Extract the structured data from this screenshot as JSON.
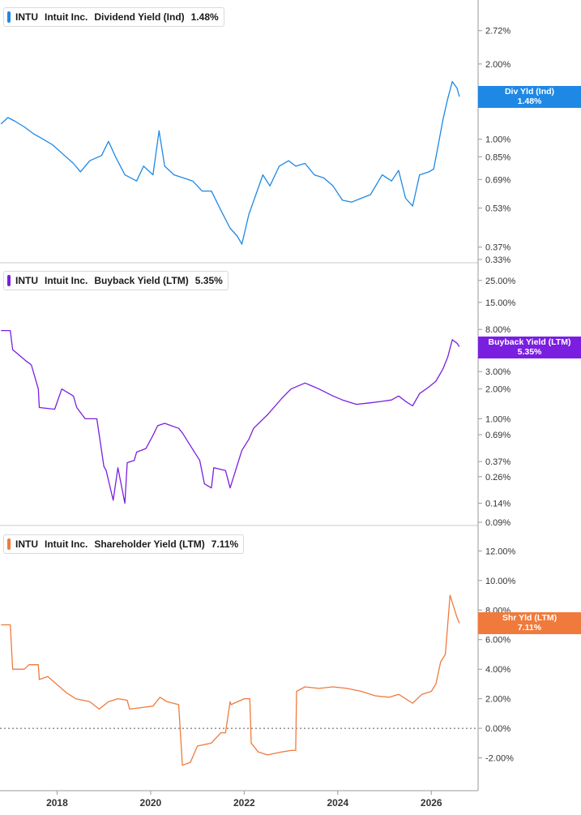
{
  "chart_data": [
    {
      "type": "line",
      "scale": "log",
      "ticker": "INTU",
      "company": "Intuit Inc.",
      "metric": "Dividend Yield (Ind)",
      "current_value": "1.48%",
      "tag_label": "Div Yld (Ind)",
      "color": "#1e88e5",
      "yticks": [
        "2.72%",
        "2.00%",
        "1.00%",
        "0.85%",
        "0.69%",
        "0.53%",
        "0.37%",
        "0.33%"
      ],
      "ytick_values": [
        2.72,
        2.0,
        1.0,
        0.85,
        0.69,
        0.53,
        0.37,
        0.33
      ],
      "ylim": [
        0.33,
        3.5
      ],
      "series": [
        {
          "x": [
            2016.8,
            2016.95,
            2017.1,
            2017.3,
            2017.5,
            2017.7,
            2017.9,
            2018.1,
            2018.35,
            2018.5,
            2018.7,
            2018.95,
            2019.1,
            2019.25,
            2019.45,
            2019.7,
            2019.85,
            2020.05,
            2020.18,
            2020.3,
            2020.5,
            2020.7,
            2020.9,
            2021.1,
            2021.3,
            2021.5,
            2021.7,
            2021.85,
            2021.95,
            2022.1,
            2022.25,
            2022.4,
            2022.55,
            2022.75,
            2022.95,
            2023.1,
            2023.3,
            2023.5,
            2023.7,
            2023.9,
            2024.1,
            2024.3,
            2024.5,
            2024.7,
            2024.95,
            2025.15,
            2025.3,
            2025.45,
            2025.6,
            2025.75,
            2025.95,
            2026.05,
            2026.15,
            2026.25,
            2026.35,
            2026.45,
            2026.55,
            2026.6
          ],
          "y": [
            1.15,
            1.22,
            1.18,
            1.12,
            1.05,
            1.0,
            0.95,
            0.88,
            0.8,
            0.74,
            0.82,
            0.86,
            0.98,
            0.85,
            0.72,
            0.68,
            0.78,
            0.72,
            1.08,
            0.78,
            0.72,
            0.7,
            0.68,
            0.62,
            0.62,
            0.52,
            0.44,
            0.41,
            0.38,
            0.5,
            0.6,
            0.72,
            0.65,
            0.78,
            0.82,
            0.78,
            0.8,
            0.72,
            0.7,
            0.65,
            0.57,
            0.56,
            0.58,
            0.6,
            0.72,
            0.68,
            0.75,
            0.58,
            0.54,
            0.72,
            0.74,
            0.76,
            0.95,
            1.2,
            1.45,
            1.7,
            1.6,
            1.48
          ]
        }
      ]
    },
    {
      "type": "line",
      "scale": "log",
      "ticker": "INTU",
      "company": "Intuit Inc.",
      "metric": "Buyback Yield (LTM)",
      "current_value": "5.35%",
      "tag_label": "Buyback Yield (LTM)",
      "color": "#7a1fe0",
      "yticks": [
        "25.00%",
        "15.00%",
        "8.00%",
        "3.00%",
        "2.00%",
        "1.00%",
        "0.69%",
        "0.37%",
        "0.26%",
        "0.14%",
        "0.09%"
      ],
      "ytick_values": [
        25,
        15,
        8,
        3,
        2,
        1,
        0.69,
        0.37,
        0.26,
        0.14,
        0.09
      ],
      "ylim": [
        0.09,
        35
      ],
      "series": [
        {
          "x": [
            2016.8,
            2017.0,
            2017.05,
            2017.35,
            2017.45,
            2017.6,
            2017.62,
            2017.95,
            2018.1,
            2018.35,
            2018.42,
            2018.6,
            2018.85,
            2019.0,
            2019.05,
            2019.2,
            2019.3,
            2019.45,
            2019.5,
            2019.65,
            2019.7,
            2019.9,
            2020.05,
            2020.15,
            2020.3,
            2020.6,
            2020.68,
            2020.95,
            2021.05,
            2021.15,
            2021.3,
            2021.35,
            2021.6,
            2021.7,
            2021.95,
            2022.1,
            2022.2,
            2022.5,
            2022.8,
            2023.0,
            2023.3,
            2023.6,
            2023.9,
            2024.1,
            2024.4,
            2024.7,
            2024.95,
            2025.15,
            2025.3,
            2025.45,
            2025.6,
            2025.75,
            2025.95,
            2026.1,
            2026.25,
            2026.35,
            2026.45,
            2026.55,
            2026.6
          ],
          "y": [
            7.8,
            7.8,
            5.0,
            3.8,
            3.5,
            2.0,
            1.3,
            1.25,
            2.0,
            1.7,
            1.3,
            1.0,
            1.0,
            0.33,
            0.3,
            0.15,
            0.32,
            0.14,
            0.36,
            0.38,
            0.46,
            0.5,
            0.68,
            0.85,
            0.9,
            0.8,
            0.72,
            0.45,
            0.38,
            0.22,
            0.2,
            0.32,
            0.3,
            0.2,
            0.48,
            0.62,
            0.8,
            1.1,
            1.6,
            2.0,
            2.3,
            2.0,
            1.7,
            1.55,
            1.4,
            1.45,
            1.5,
            1.55,
            1.7,
            1.5,
            1.35,
            1.8,
            2.1,
            2.4,
            3.2,
            4.2,
            6.3,
            5.8,
            5.35
          ]
        }
      ]
    },
    {
      "type": "line",
      "scale": "linear",
      "ticker": "INTU",
      "company": "Intuit Inc.",
      "metric": "Shareholder Yield (LTM)",
      "current_value": "7.11%",
      "tag_label": "Shr Yld (LTM)",
      "color": "#f07a3c",
      "yticks": [
        "12.00%",
        "10.00%",
        "8.00%",
        "6.00%",
        "4.00%",
        "2.00%",
        "0.00%",
        "-2.00%"
      ],
      "ytick_values": [
        12,
        10,
        8,
        6,
        4,
        2,
        0,
        -2
      ],
      "ylim": [
        -4,
        13.5
      ],
      "zero_line": true,
      "series": [
        {
          "x": [
            2016.8,
            2017.0,
            2017.05,
            2017.3,
            2017.4,
            2017.6,
            2017.62,
            2017.8,
            2017.95,
            2018.2,
            2018.4,
            2018.7,
            2018.9,
            2019.1,
            2019.3,
            2019.5,
            2019.55,
            2019.8,
            2020.05,
            2020.2,
            2020.35,
            2020.6,
            2020.68,
            2020.85,
            2021.0,
            2021.3,
            2021.5,
            2021.6,
            2021.7,
            2021.72,
            2022.0,
            2022.12,
            2022.15,
            2022.3,
            2022.5,
            2022.8,
            2023.0,
            2023.1,
            2023.12,
            2023.3,
            2023.6,
            2023.9,
            2024.2,
            2024.5,
            2024.8,
            2025.1,
            2025.3,
            2025.6,
            2025.8,
            2026.0,
            2026.1,
            2026.2,
            2026.3,
            2026.4,
            2026.45,
            2026.55,
            2026.6
          ],
          "y": [
            7.0,
            7.0,
            4.0,
            4.0,
            4.3,
            4.3,
            3.3,
            3.5,
            3.1,
            2.4,
            2.0,
            1.8,
            1.3,
            1.8,
            2.0,
            1.9,
            1.3,
            1.4,
            1.5,
            2.1,
            1.8,
            1.6,
            -2.5,
            -2.3,
            -1.2,
            -1.0,
            -0.3,
            -0.3,
            1.8,
            1.6,
            2.0,
            2.0,
            -1.0,
            -1.6,
            -1.8,
            -1.6,
            -1.5,
            -1.5,
            2.5,
            2.8,
            2.7,
            2.8,
            2.7,
            2.5,
            2.2,
            2.1,
            2.3,
            1.7,
            2.3,
            2.5,
            3.0,
            4.5,
            5.0,
            9.0,
            8.5,
            7.5,
            7.11
          ]
        }
      ]
    }
  ],
  "x_axis": {
    "ticks": [
      "2018",
      "2020",
      "2022",
      "2024",
      "2026"
    ],
    "tick_values": [
      2018,
      2020,
      2022,
      2024,
      2026
    ],
    "xlim": [
      2016.78,
      2027.0
    ]
  }
}
